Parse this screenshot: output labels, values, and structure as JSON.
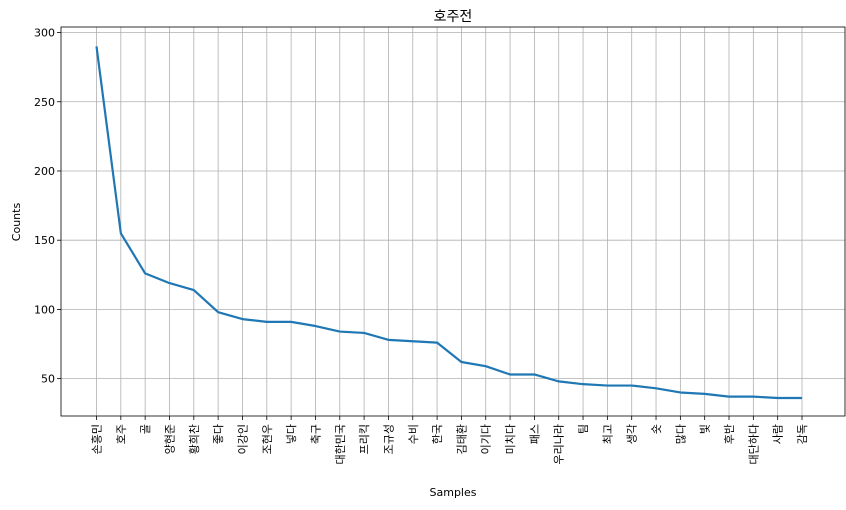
{
  "chart_data": {
    "type": "line",
    "title": "호주전",
    "xlabel": "Samples",
    "ylabel": "Counts",
    "categories": [
      "손흥민",
      "호주",
      "골",
      "양현준",
      "황희찬",
      "좋다",
      "이강인",
      "조현우",
      "넣다",
      "축구",
      "대한민국",
      "프리킥",
      "조규성",
      "수비",
      "한국",
      "김태환",
      "이기다",
      "미치다",
      "패스",
      "우리나라",
      "팀",
      "최고",
      "생각",
      "숏",
      "많다",
      "빛",
      "후반",
      "대단하다",
      "사람",
      "감독"
    ],
    "values": [
      290,
      155,
      126,
      119,
      114,
      98,
      93,
      91,
      91,
      88,
      84,
      83,
      78,
      77,
      76,
      62,
      59,
      53,
      53,
      48,
      46,
      45,
      45,
      43,
      40,
      39,
      37,
      37,
      36,
      36
    ],
    "yticks": [
      50,
      100,
      150,
      200,
      250,
      300
    ],
    "ylim": [
      23,
      304
    ],
    "grid": true,
    "line_color": "#1f77b4"
  }
}
